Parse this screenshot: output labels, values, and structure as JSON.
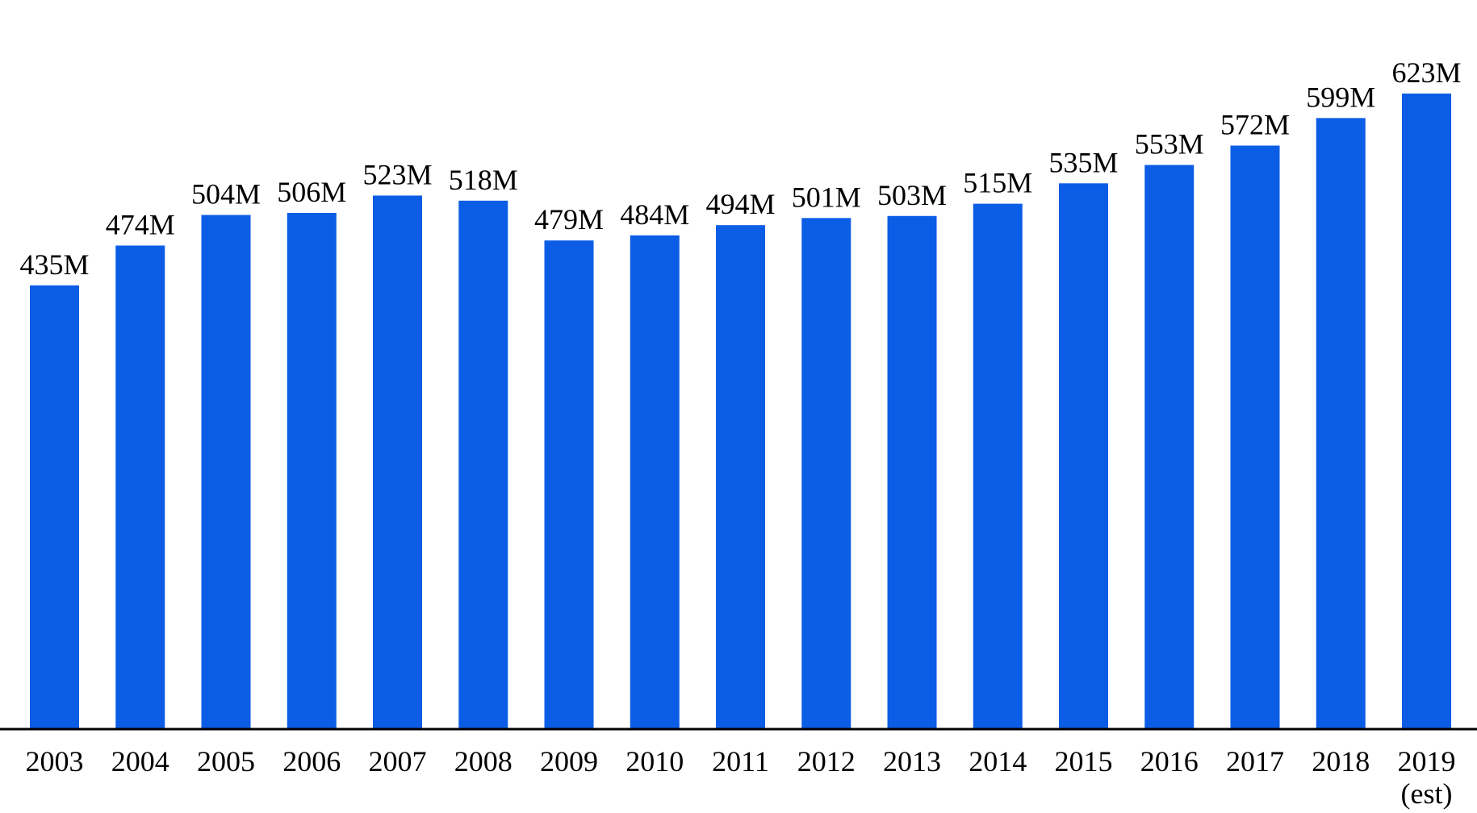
{
  "chart_data": {
    "type": "bar",
    "categories": [
      "2003",
      "2004",
      "2005",
      "2006",
      "2007",
      "2008",
      "2009",
      "2010",
      "2011",
      "2012",
      "2013",
      "2014",
      "2015",
      "2016",
      "2017",
      "2018",
      "2019\n(est)"
    ],
    "values": [
      435,
      474,
      504,
      506,
      523,
      518,
      479,
      484,
      494,
      501,
      503,
      515,
      535,
      553,
      572,
      599,
      623
    ],
    "value_labels": [
      "435M",
      "474M",
      "504M",
      "506M",
      "523M",
      "518M",
      "479M",
      "484M",
      "494M",
      "501M",
      "503M",
      "515M",
      "535M",
      "553M",
      "572M",
      "599M",
      "623M"
    ],
    "title": "",
    "xlabel": "",
    "ylabel": "",
    "ylim": [
      0,
      623
    ],
    "grid": false,
    "bar_color": "#0b5de5",
    "axis_color": "#000000"
  }
}
